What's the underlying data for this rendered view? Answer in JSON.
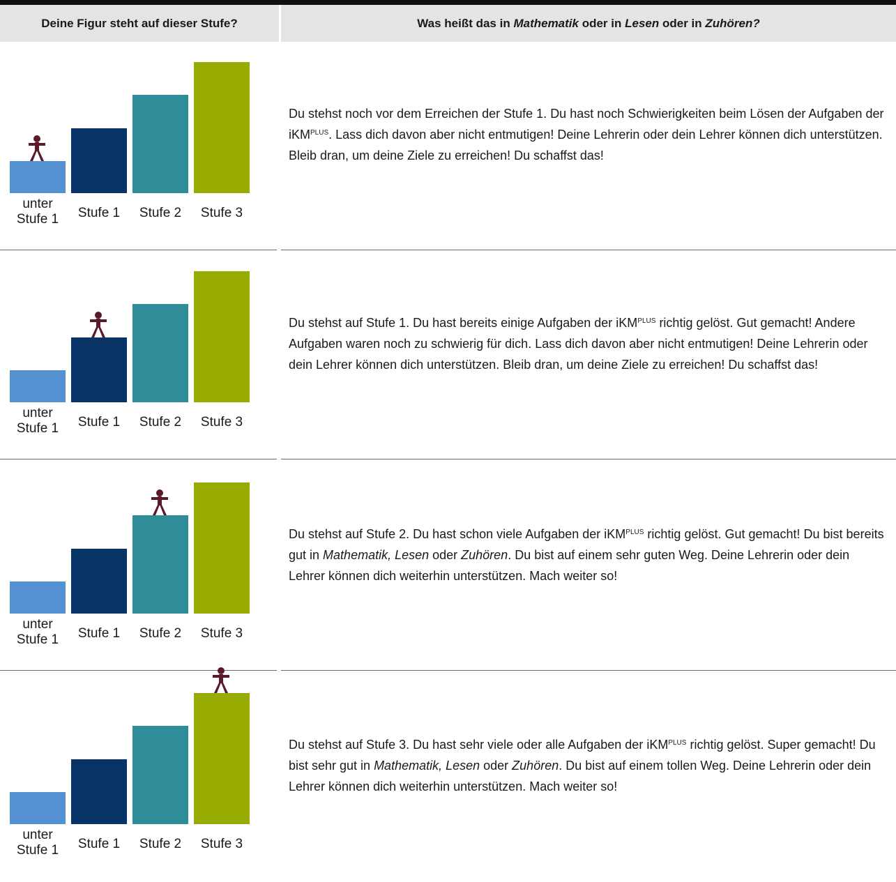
{
  "header": {
    "col1": "Deine Figur steht auf dieser Stufe?",
    "col2": [
      {
        "text": "Was heißt das in ",
        "italic": false
      },
      {
        "text": "Mathematik",
        "italic": true
      },
      {
        "text": " oder in ",
        "italic": false
      },
      {
        "text": "Lesen",
        "italic": true
      },
      {
        "text": " oder in ",
        "italic": false
      },
      {
        "text": "Zuhören?",
        "italic": true
      }
    ]
  },
  "colors": {
    "under": "#5391d0",
    "stufe1": "#083366",
    "stufe2": "#2e8d99",
    "stufe3": "#97ab00",
    "figure": "#5a1a2a"
  },
  "categories": [
    {
      "key": "under",
      "line1": "unter",
      "line2": "Stufe 1"
    },
    {
      "key": "stufe1",
      "line1": "Stufe 1"
    },
    {
      "key": "stufe2",
      "line1": "Stufe 2"
    },
    {
      "key": "stufe3",
      "line1": "Stufe 3"
    }
  ],
  "levels": [
    0,
    1,
    2,
    3
  ],
  "rows": [
    {
      "figure_level": 0,
      "segments": [
        {
          "text": "Du stehst noch vor dem Erreichen der Stufe 1. Du hast noch Schwierigkeiten beim Lösen der Aufgaben der iKM"
        },
        {
          "text": "PLUS",
          "sup": true
        },
        {
          "text": ". Lass dich davon aber nicht entmutigen! Deine Lehrerin oder dein Lehrer können dich unterstützen. Bleib dran, um deine Ziele zu erreichen! Du schaffst das!"
        }
      ]
    },
    {
      "figure_level": 1,
      "segments": [
        {
          "text": "Du stehst auf Stufe 1. Du hast bereits einige Aufgaben der iKM"
        },
        {
          "text": "PLUS",
          "sup": true
        },
        {
          "text": " richtig gelöst. Gut gemacht! Andere Aufgaben waren noch zu schwierig für dich. Lass dich davon aber nicht entmutigen!  Deine Lehrerin oder dein Lehrer können dich unterstützen. Bleib dran, um deine Ziele zu erreichen! Du schaffst das!"
        }
      ]
    },
    {
      "figure_level": 2,
      "segments": [
        {
          "text": "Du stehst auf Stufe 2. Du hast schon viele Aufgaben der iKM"
        },
        {
          "text": "PLUS",
          "sup": true
        },
        {
          "text": " richtig gelöst. Gut gemacht! Du bist bereits gut in "
        },
        {
          "text": "Mathematik, Lesen",
          "italic": true
        },
        {
          "text": " oder "
        },
        {
          "text": "Zuhören",
          "italic": true
        },
        {
          "text": ". Du bist auf einem sehr guten Weg. Deine Lehrerin oder dein Lehrer können dich weiterhin unterstützen. Mach weiter so!"
        }
      ]
    },
    {
      "figure_level": 3,
      "segments": [
        {
          "text": "Du stehst auf Stufe 3. Du hast sehr viele oder alle Aufgaben der iKM"
        },
        {
          "text": "PLUS",
          "sup": true
        },
        {
          "text": " richtig gelöst. Super gemacht! Du bist sehr gut in "
        },
        {
          "text": "Mathematik, Lesen",
          "italic": true
        },
        {
          "text": " oder "
        },
        {
          "text": "Zuhören",
          "italic": true
        },
        {
          "text": ". Du bist auf einem tollen Weg. Deine Lehrerin oder dein Lehrer können dich weiterhin unterstützen. Mach weiter so!"
        }
      ]
    }
  ]
}
